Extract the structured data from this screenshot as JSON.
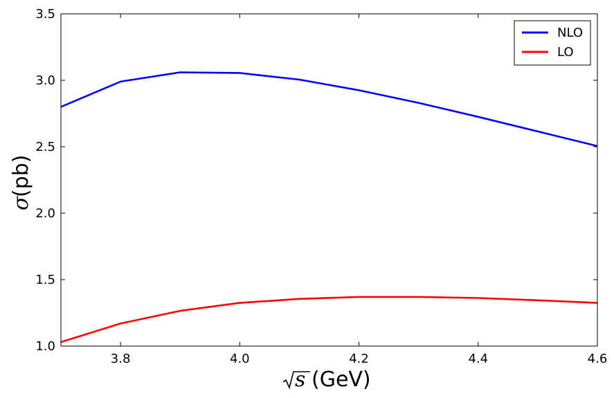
{
  "chart_data": {
    "type": "line",
    "xlabel": "(GeV)",
    "xlabel_math": "s",
    "ylabel": "(pb)",
    "ylabel_math": "σ",
    "xlim": [
      3.7,
      4.6
    ],
    "ylim": [
      1.0,
      3.5
    ],
    "xticks": [
      "3.8",
      "4.0",
      "4.2",
      "4.4",
      "4.6"
    ],
    "yticks": [
      "1.0",
      "1.5",
      "2.0",
      "2.5",
      "3.0",
      "3.5"
    ],
    "grid": false,
    "legend_position": "top-right",
    "x": [
      3.7,
      3.8,
      3.9,
      4.0,
      4.1,
      4.2,
      4.3,
      4.4,
      4.5,
      4.6
    ],
    "series": [
      {
        "name": "NLO",
        "color": "#0000ff",
        "values": [
          2.8,
          2.99,
          3.06,
          3.055,
          3.005,
          2.925,
          2.83,
          2.725,
          2.615,
          2.505
        ]
      },
      {
        "name": "LO",
        "color": "#ff0000",
        "values": [
          1.03,
          1.17,
          1.265,
          1.325,
          1.355,
          1.37,
          1.37,
          1.362,
          1.345,
          1.325
        ]
      }
    ]
  }
}
